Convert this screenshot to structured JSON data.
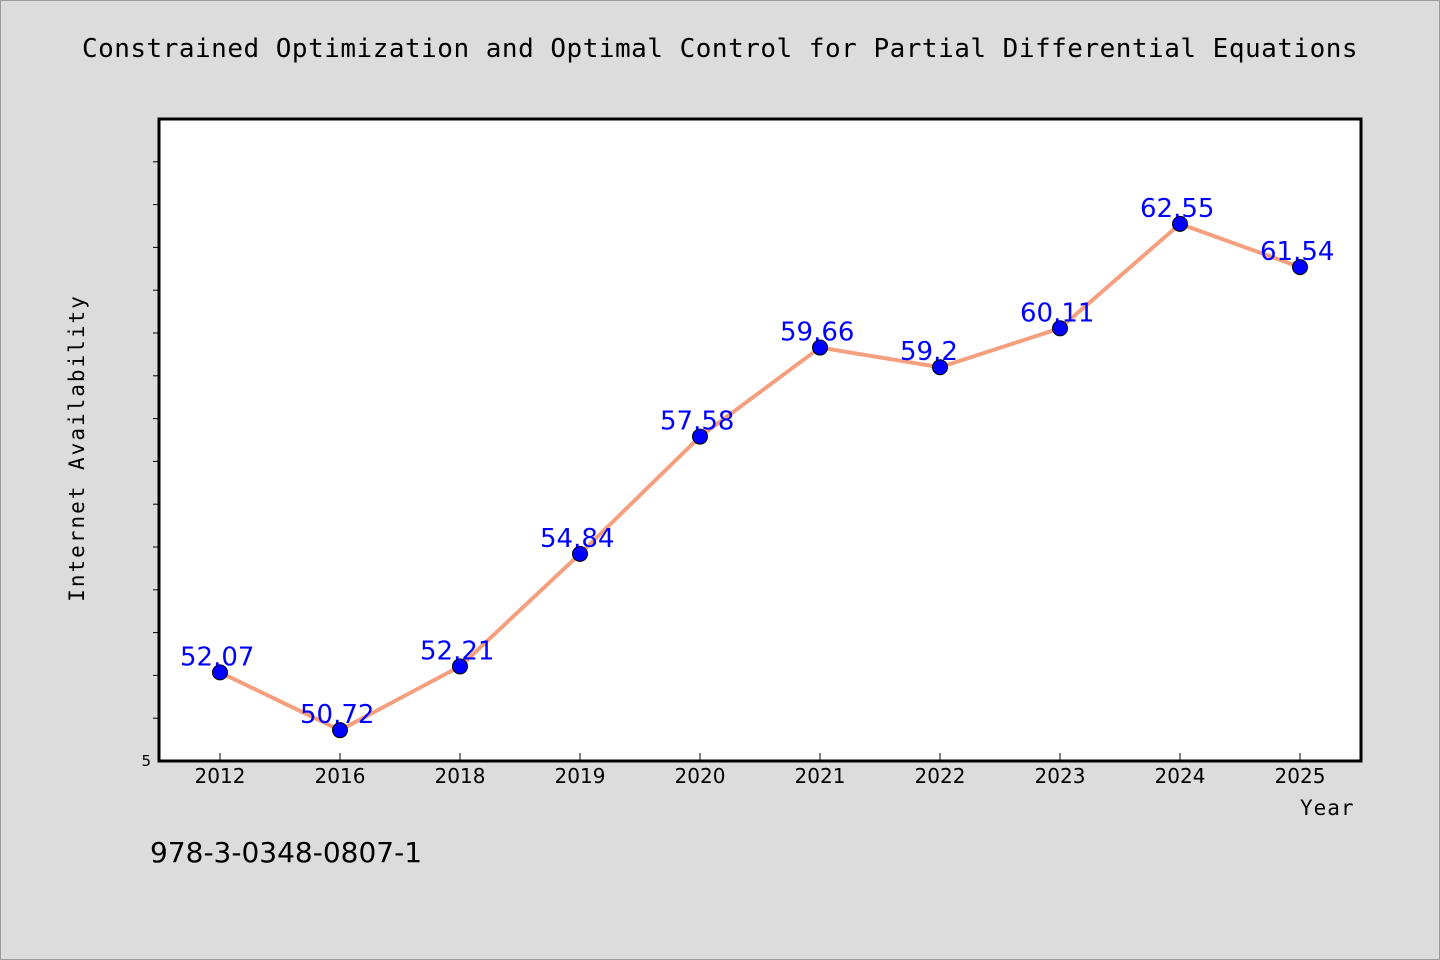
{
  "chart_data": {
    "type": "line",
    "title": "Constrained Optimization and Optimal Control for Partial Differential Equations",
    "xlabel": "Year",
    "ylabel": "Internet Availability",
    "categories": [
      "2012",
      "2016",
      "2018",
      "2019",
      "2020",
      "2021",
      "2022",
      "2023",
      "2024",
      "2025"
    ],
    "series": [
      {
        "values": [
          52.07,
          50.72,
          52.21,
          54.84,
          57.58,
          59.66,
          59.2,
          60.11,
          62.55,
          61.54
        ]
      }
    ],
    "data_labels": [
      "52.07",
      "50.72",
      "52.21",
      "54.84",
      "57.58",
      "59.66",
      "59.2",
      "60.11",
      "62.55",
      "61.54"
    ],
    "y_tick_labels": [
      "5"
    ],
    "ylim": [
      50,
      65
    ],
    "grid": false,
    "legend": "none",
    "colors": {
      "line": "#f4a07f",
      "marker": "#0000ff",
      "data_label": "#0000ff",
      "plot_background": "#ffffff",
      "page_background": "#dcdcdc"
    }
  },
  "footer": {
    "isbn": "978-3-0348-0807-1"
  }
}
